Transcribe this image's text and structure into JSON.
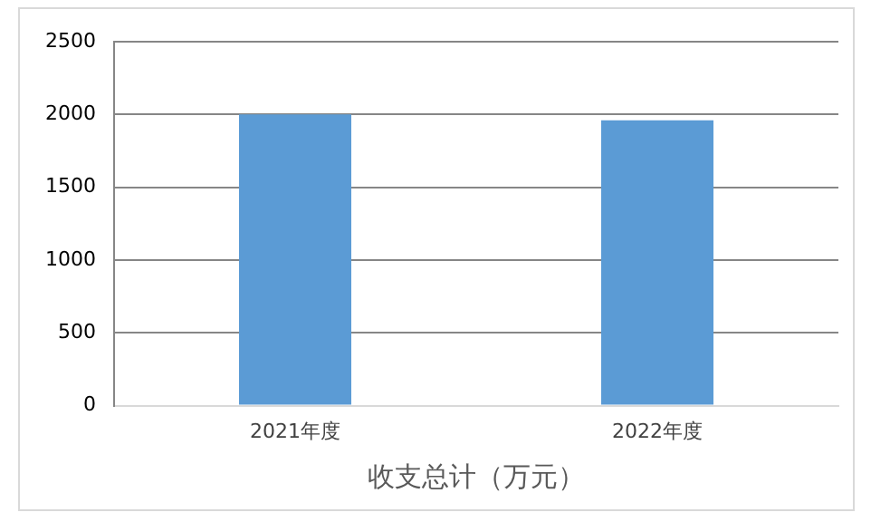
{
  "chart_data": {
    "type": "bar",
    "xlabel": "收支总计（万元）",
    "categories": [
      "2021年度",
      "2022年度"
    ],
    "values": [
      2000,
      1960
    ],
    "color": "#5b9bd5",
    "ylim": [
      0,
      2500
    ],
    "yticks": [
      0,
      500,
      1000,
      1500,
      2000,
      2500
    ],
    "grid": "y",
    "legend": false
  }
}
